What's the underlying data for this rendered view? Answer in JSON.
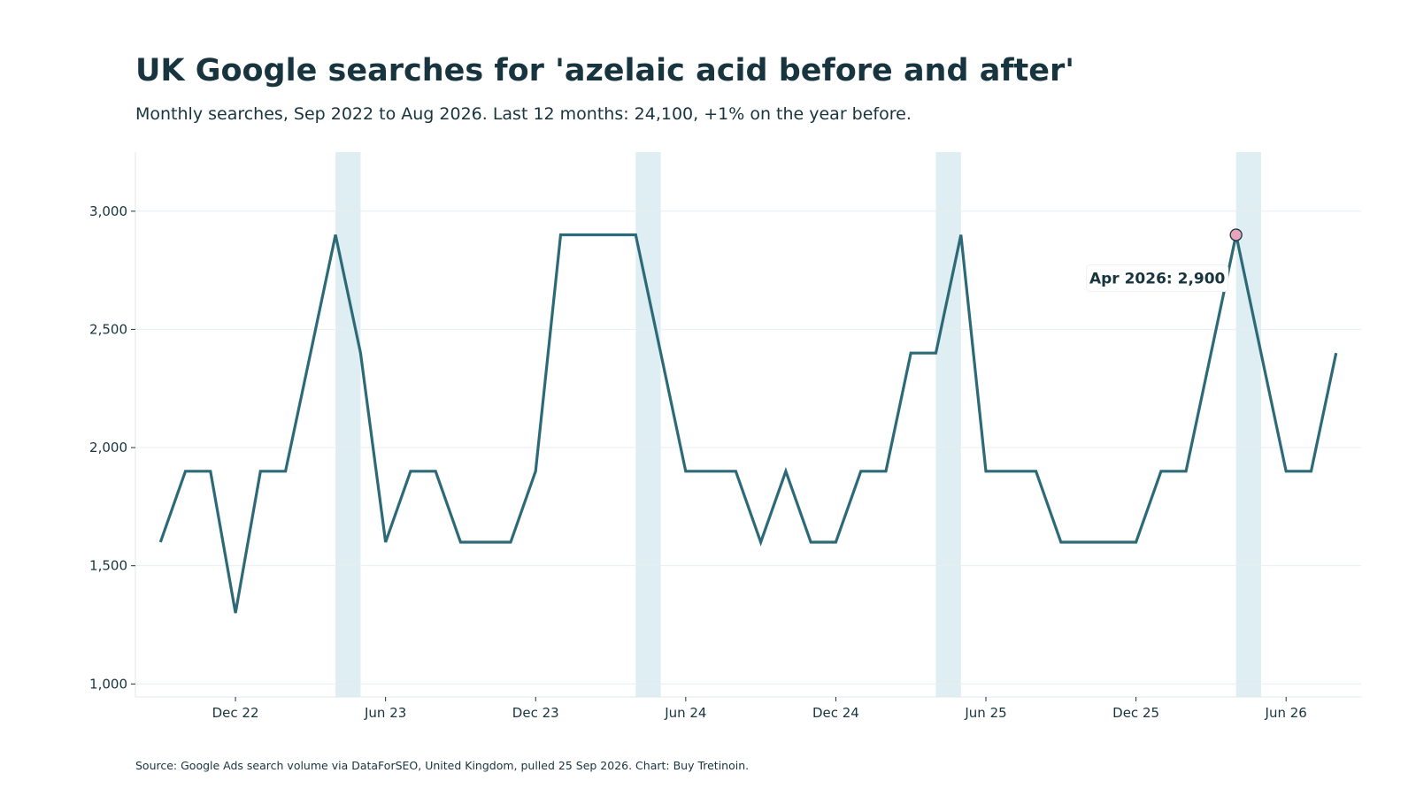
{
  "title": "UK Google searches for 'azelaic acid before and after'",
  "subtitle": "Monthly searches, Sep 2022 to Aug 2026. Last 12 months: 24,100, +1% on the year before.",
  "source": "Source: Google Ads search volume via DataForSEO, United Kingdom, pulled 25 Sep 2026. Chart: Buy Tretinoin.",
  "colors": {
    "line": "#2d6a78",
    "highlight_band": "#deeef3",
    "marker_fill": "#e8a4b8",
    "marker_stroke": "#17343f",
    "text": "#17343f",
    "grid": "#e8eef0"
  },
  "chart_data": {
    "type": "line",
    "title": "UK Google searches for 'azelaic acid before and after'",
    "xlabel": "",
    "ylabel": "",
    "x": [
      "2022-09",
      "2022-10",
      "2022-11",
      "2022-12",
      "2023-01",
      "2023-02",
      "2023-03",
      "2023-04",
      "2023-05",
      "2023-06",
      "2023-07",
      "2023-08",
      "2023-09",
      "2023-10",
      "2023-11",
      "2023-12",
      "2024-01",
      "2024-02",
      "2024-03",
      "2024-04",
      "2024-05",
      "2024-06",
      "2024-07",
      "2024-08",
      "2024-09",
      "2024-10",
      "2024-11",
      "2024-12",
      "2025-01",
      "2025-02",
      "2025-03",
      "2025-04",
      "2025-05",
      "2025-06",
      "2025-07",
      "2025-08",
      "2025-09",
      "2025-10",
      "2025-11",
      "2025-12",
      "2026-01",
      "2026-02",
      "2026-03",
      "2026-04",
      "2026-05",
      "2026-06",
      "2026-07",
      "2026-08"
    ],
    "series": [
      {
        "values": [
          1600,
          1900,
          1900,
          1300,
          1900,
          1900,
          2400,
          2900,
          2400,
          1600,
          1900,
          1900,
          1600,
          1600,
          1600,
          1900,
          2900,
          2900,
          2900,
          2900,
          2400,
          1900,
          1900,
          1900,
          1600,
          1900,
          1600,
          1600,
          1900,
          1900,
          2400,
          2400,
          2900,
          1900,
          1900,
          1900,
          1600,
          1600,
          1600,
          1600,
          1900,
          1900,
          2400,
          2900,
          2400,
          1900,
          1900,
          2400
        ]
      }
    ],
    "x_ticks": [
      {
        "x": "2022-12",
        "label": "Dec 22"
      },
      {
        "x": "2023-06",
        "label": "Jun 23"
      },
      {
        "x": "2023-12",
        "label": "Dec 23"
      },
      {
        "x": "2024-06",
        "label": "Jun 24"
      },
      {
        "x": "2024-12",
        "label": "Dec 24"
      },
      {
        "x": "2025-06",
        "label": "Jun 25"
      },
      {
        "x": "2025-12",
        "label": "Dec 25"
      },
      {
        "x": "2026-06",
        "label": "Jun 26"
      }
    ],
    "y_ticks": [
      {
        "value": 1000,
        "label": "1,000"
      },
      {
        "value": 1500,
        "label": "1,500"
      },
      {
        "value": 2000,
        "label": "2,000"
      },
      {
        "value": 2500,
        "label": "2,500"
      },
      {
        "value": 3000,
        "label": "3,000"
      }
    ],
    "ylim": [
      945,
      3250
    ],
    "xlim": [
      "2022-08",
      "2026-09"
    ],
    "highlight_months": [
      "2023-04",
      "2024-04",
      "2025-04",
      "2026-04"
    ],
    "annotation": {
      "x": "2026-04",
      "y": 2900,
      "text": "Apr 2026: 2,900"
    },
    "grid": "horizontal"
  }
}
